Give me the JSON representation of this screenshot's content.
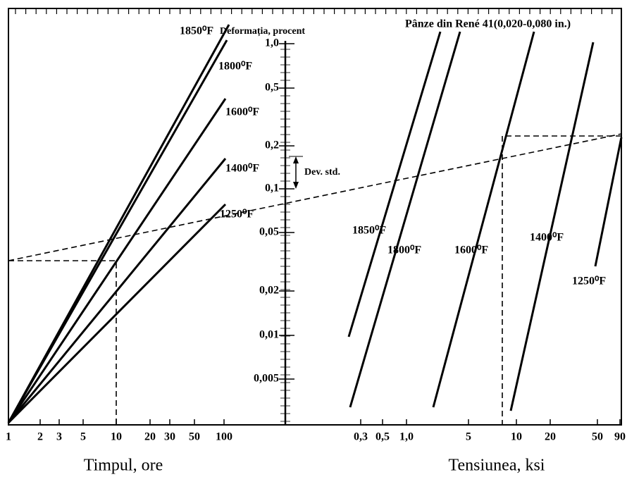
{
  "title": "Pânze din René 41(0,020-0,080 in.)",
  "y_axis_label": "Deformația, procent",
  "std_dev_label": "Dev. std.",
  "y_ticks": [
    "1,0",
    "0,5",
    "0,2",
    "0,1",
    "0,05",
    "0,02",
    "0,01",
    "0,005"
  ],
  "left_axis": {
    "title": "Timpul, ore",
    "ticks": [
      "1",
      "2",
      "3",
      "5",
      "10",
      "20",
      "30",
      "50",
      "100"
    ]
  },
  "right_axis": {
    "title": "Tensiunea, ksi",
    "ticks": [
      "0,3",
      "0,5",
      "1,0",
      "5",
      "10",
      "20",
      "50",
      "90"
    ]
  },
  "left_curves": [
    "1850⁰F",
    "1800⁰F",
    "1600⁰F",
    "1400⁰F",
    "1250⁰F"
  ],
  "right_curves": [
    "1850⁰F",
    "1800⁰F",
    "1600⁰F",
    "1400⁰F",
    "1250⁰F"
  ]
}
